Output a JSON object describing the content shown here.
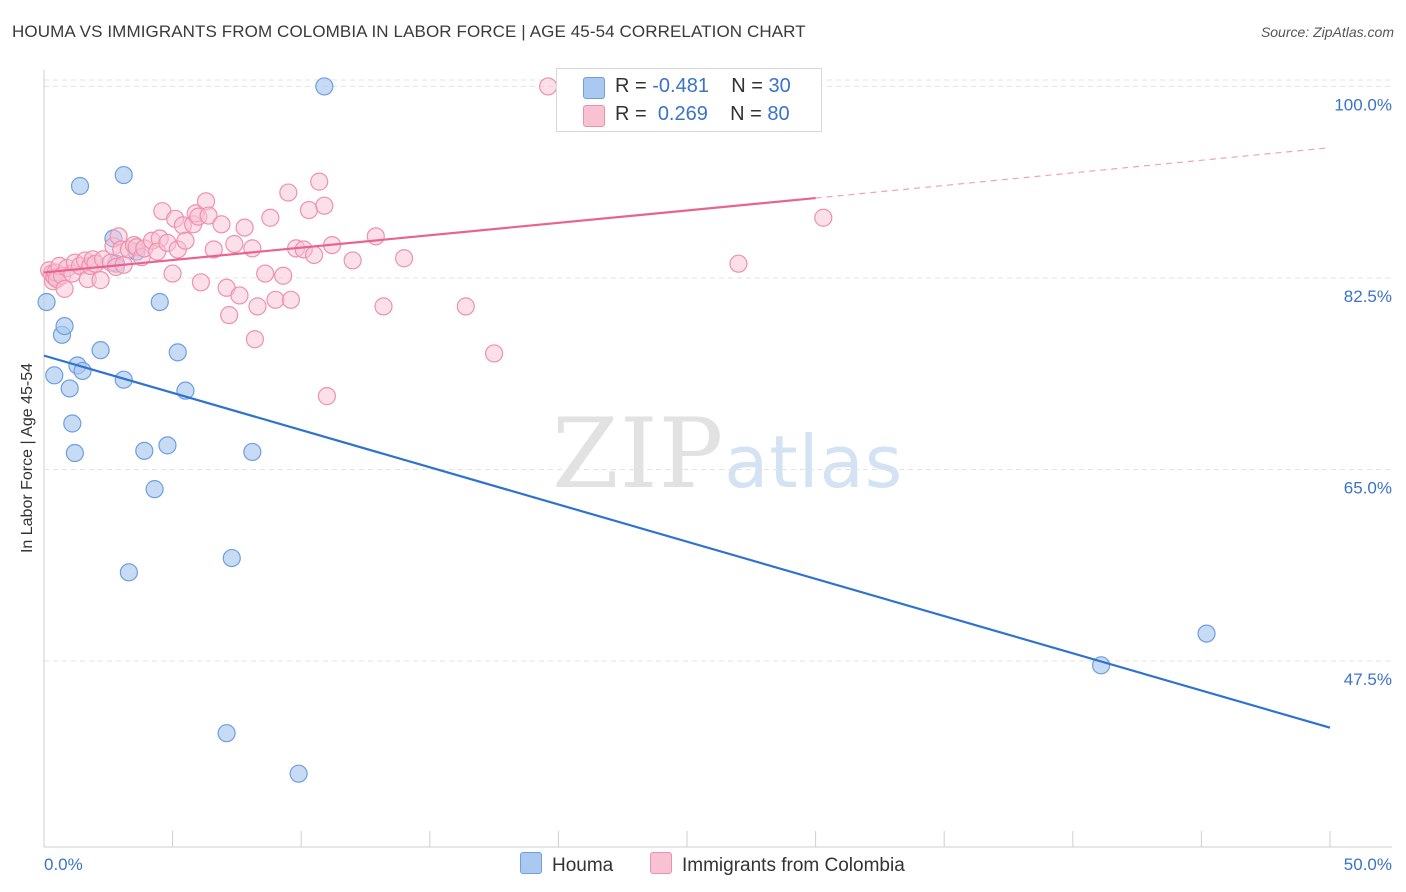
{
  "title": "HOUMA VS IMMIGRANTS FROM COLOMBIA IN LABOR FORCE | AGE 45-54 CORRELATION CHART",
  "source": "Source: ZipAtlas.com",
  "watermark": {
    "zip": "ZIP",
    "atlas": "atlas"
  },
  "legend_box": {
    "rows": [
      {
        "r_label": "R = ",
        "r_value": "-0.481",
        "n_label": "N = ",
        "n_value": "30"
      },
      {
        "r_label": "R = ",
        "r_value": "0.269",
        "n_label": "N = ",
        "n_value": "80"
      }
    ]
  },
  "colors": {
    "houma_fill": "#aac8f0",
    "houma_stroke": "#6d9fe0",
    "houma_line": "#2f72d0",
    "colombia_fill": "#f8c2d3",
    "colombia_stroke": "#ee91ae",
    "colombia_line": "#e8638f",
    "tick_label": "#3a73c8",
    "grid": "#e3e3e3"
  },
  "chart_data": {
    "type": "scatter",
    "title": "HOUMA VS IMMIGRANTS FROM COLOMBIA IN LABOR FORCE | AGE 45-54 CORRELATION CHART",
    "xlabel": "",
    "ylabel": "In Labor Force | Age 45-54",
    "xlim": [
      0,
      50
    ],
    "ylim": [
      30.5,
      101.5
    ],
    "x_tick_labels": [
      "0.0%",
      "50.0%"
    ],
    "y_ticks": [
      47.5,
      65.0,
      82.5,
      100.0
    ],
    "y_tick_labels": [
      "47.5%",
      "65.0%",
      "82.5%",
      "100.0%"
    ],
    "grid": true,
    "legend_position": "bottom-center",
    "series": [
      {
        "name": "Houma",
        "points": [
          [
            0.1,
            80.3
          ],
          [
            0.4,
            73.6
          ],
          [
            0.7,
            77.3
          ],
          [
            0.8,
            78.1
          ],
          [
            1.0,
            72.4
          ],
          [
            1.1,
            69.2
          ],
          [
            1.2,
            66.5
          ],
          [
            1.3,
            74.5
          ],
          [
            1.4,
            90.9
          ],
          [
            1.5,
            74.0
          ],
          [
            2.2,
            75.9
          ],
          [
            2.7,
            86.1
          ],
          [
            2.8,
            83.8
          ],
          [
            3.1,
            91.9
          ],
          [
            3.1,
            73.2
          ],
          [
            3.3,
            55.6
          ],
          [
            3.6,
            84.9
          ],
          [
            3.9,
            66.7
          ],
          [
            4.3,
            63.2
          ],
          [
            4.5,
            80.3
          ],
          [
            4.8,
            67.2
          ],
          [
            5.2,
            75.7
          ],
          [
            5.5,
            72.2
          ],
          [
            7.1,
            40.9
          ],
          [
            7.3,
            56.9
          ],
          [
            8.1,
            66.6
          ],
          [
            9.9,
            37.2
          ],
          [
            10.9,
            100.0
          ],
          [
            41.1,
            47.1
          ],
          [
            45.2,
            50.0
          ]
        ],
        "trend": [
          [
            0.0,
            75.4
          ],
          [
            50.0,
            41.4
          ]
        ]
      },
      {
        "name": "Immigrants from Colombia",
        "points": [
          [
            0.2,
            83.2
          ],
          [
            0.3,
            82.9
          ],
          [
            0.35,
            82.2
          ],
          [
            0.4,
            82.6
          ],
          [
            0.45,
            83.0
          ],
          [
            0.5,
            82.4
          ],
          [
            0.6,
            83.6
          ],
          [
            0.7,
            82.7
          ],
          [
            0.8,
            81.5
          ],
          [
            0.9,
            83.4
          ],
          [
            1.1,
            82.9
          ],
          [
            1.2,
            83.9
          ],
          [
            1.4,
            83.6
          ],
          [
            1.6,
            84.1
          ],
          [
            1.7,
            82.4
          ],
          [
            1.8,
            83.6
          ],
          [
            1.9,
            84.2
          ],
          [
            2.0,
            83.8
          ],
          [
            2.2,
            82.3
          ],
          [
            2.3,
            84.2
          ],
          [
            2.6,
            83.9
          ],
          [
            2.7,
            85.4
          ],
          [
            2.8,
            83.5
          ],
          [
            2.9,
            86.3
          ],
          [
            3.0,
            85.1
          ],
          [
            3.1,
            83.7
          ],
          [
            3.3,
            85.1
          ],
          [
            3.5,
            85.5
          ],
          [
            3.6,
            85.3
          ],
          [
            3.8,
            84.4
          ],
          [
            3.9,
            85.2
          ],
          [
            4.2,
            85.9
          ],
          [
            4.5,
            86.1
          ],
          [
            4.4,
            84.9
          ],
          [
            4.6,
            88.6
          ],
          [
            4.8,
            85.7
          ],
          [
            5.1,
            87.9
          ],
          [
            5.0,
            82.9
          ],
          [
            5.2,
            85.1
          ],
          [
            5.4,
            87.3
          ],
          [
            5.5,
            85.9
          ],
          [
            5.8,
            87.4
          ],
          [
            5.9,
            88.4
          ],
          [
            6.0,
            88.1
          ],
          [
            6.1,
            82.1
          ],
          [
            6.3,
            89.5
          ],
          [
            6.4,
            88.2
          ],
          [
            6.6,
            85.1
          ],
          [
            6.9,
            87.4
          ],
          [
            7.1,
            81.6
          ],
          [
            7.2,
            79.1
          ],
          [
            7.4,
            85.6
          ],
          [
            7.6,
            80.9
          ],
          [
            7.8,
            87.1
          ],
          [
            8.1,
            85.2
          ],
          [
            8.2,
            76.9
          ],
          [
            8.3,
            79.9
          ],
          [
            8.6,
            82.9
          ],
          [
            8.8,
            88.0
          ],
          [
            9.0,
            80.5
          ],
          [
            9.3,
            82.7
          ],
          [
            9.6,
            80.5
          ],
          [
            9.5,
            90.3
          ],
          [
            9.8,
            85.2
          ],
          [
            10.1,
            85.1
          ],
          [
            10.3,
            88.7
          ],
          [
            10.5,
            84.6
          ],
          [
            10.7,
            91.3
          ],
          [
            10.9,
            89.1
          ],
          [
            11.0,
            71.7
          ],
          [
            11.2,
            85.5
          ],
          [
            12.0,
            84.1
          ],
          [
            12.9,
            86.3
          ],
          [
            13.2,
            79.9
          ],
          [
            14.0,
            84.3
          ],
          [
            16.4,
            79.9
          ],
          [
            17.5,
            75.6
          ],
          [
            19.6,
            100.0
          ],
          [
            27.0,
            83.8
          ],
          [
            30.3,
            88.0
          ]
        ],
        "trend": [
          [
            0.0,
            83.0
          ],
          [
            30.0,
            89.8
          ]
        ],
        "trend_extension": [
          [
            30.0,
            89.8
          ],
          [
            50.0,
            94.4
          ]
        ]
      }
    ]
  },
  "bottom_legend": [
    {
      "label": "Houma"
    },
    {
      "label": "Immigrants from Colombia"
    }
  ]
}
